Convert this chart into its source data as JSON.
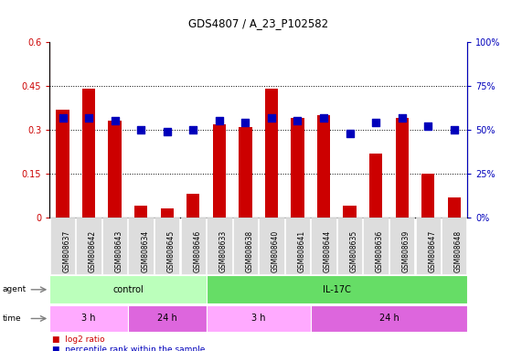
{
  "title": "GDS4807 / A_23_P102582",
  "samples": [
    "GSM808637",
    "GSM808642",
    "GSM808643",
    "GSM808634",
    "GSM808645",
    "GSM808646",
    "GSM808633",
    "GSM808638",
    "GSM808640",
    "GSM808641",
    "GSM808644",
    "GSM808635",
    "GSM808636",
    "GSM808639",
    "GSM808647",
    "GSM808648"
  ],
  "log2_ratio": [
    0.37,
    0.44,
    0.33,
    0.04,
    0.03,
    0.08,
    0.32,
    0.31,
    0.44,
    0.34,
    0.35,
    0.04,
    0.22,
    0.34,
    0.15,
    0.07
  ],
  "percentile": [
    57,
    57,
    55,
    50,
    49,
    50,
    55,
    54,
    57,
    55,
    57,
    48,
    54,
    57,
    52,
    50
  ],
  "bar_color": "#cc0000",
  "dot_color": "#0000bb",
  "ylim_left": [
    0,
    0.6
  ],
  "ylim_right": [
    0,
    100
  ],
  "yticks_left": [
    0,
    0.15,
    0.3,
    0.45,
    0.6
  ],
  "yticks_right": [
    0,
    25,
    50,
    75,
    100
  ],
  "ytick_labels_left": [
    "0",
    "0.15",
    "0.3",
    "0.45",
    "0.6"
  ],
  "ytick_labels_right": [
    "0%",
    "25%",
    "50%",
    "75%",
    "100%"
  ],
  "hlines": [
    0.15,
    0.3,
    0.45
  ],
  "agent_groups": [
    {
      "label": "control",
      "start": 0,
      "end": 6,
      "color": "#bbffbb"
    },
    {
      "label": "IL-17C",
      "start": 6,
      "end": 16,
      "color": "#66dd66"
    }
  ],
  "time_groups": [
    {
      "label": "3 h",
      "start": 0,
      "end": 3,
      "color": "#ffaaff"
    },
    {
      "label": "24 h",
      "start": 3,
      "end": 6,
      "color": "#dd66dd"
    },
    {
      "label": "3 h",
      "start": 6,
      "end": 10,
      "color": "#ffaaff"
    },
    {
      "label": "24 h",
      "start": 10,
      "end": 16,
      "color": "#dd66dd"
    }
  ],
  "legend_items": [
    {
      "color": "#cc0000",
      "label": "log2 ratio"
    },
    {
      "color": "#0000bb",
      "label": "percentile rank within the sample"
    }
  ],
  "bar_width": 0.5,
  "dot_size": 28,
  "background_color": "#ffffff",
  "tick_label_color_left": "#cc0000",
  "tick_label_color_right": "#0000bb",
  "xticklabel_bg": "#dddddd"
}
